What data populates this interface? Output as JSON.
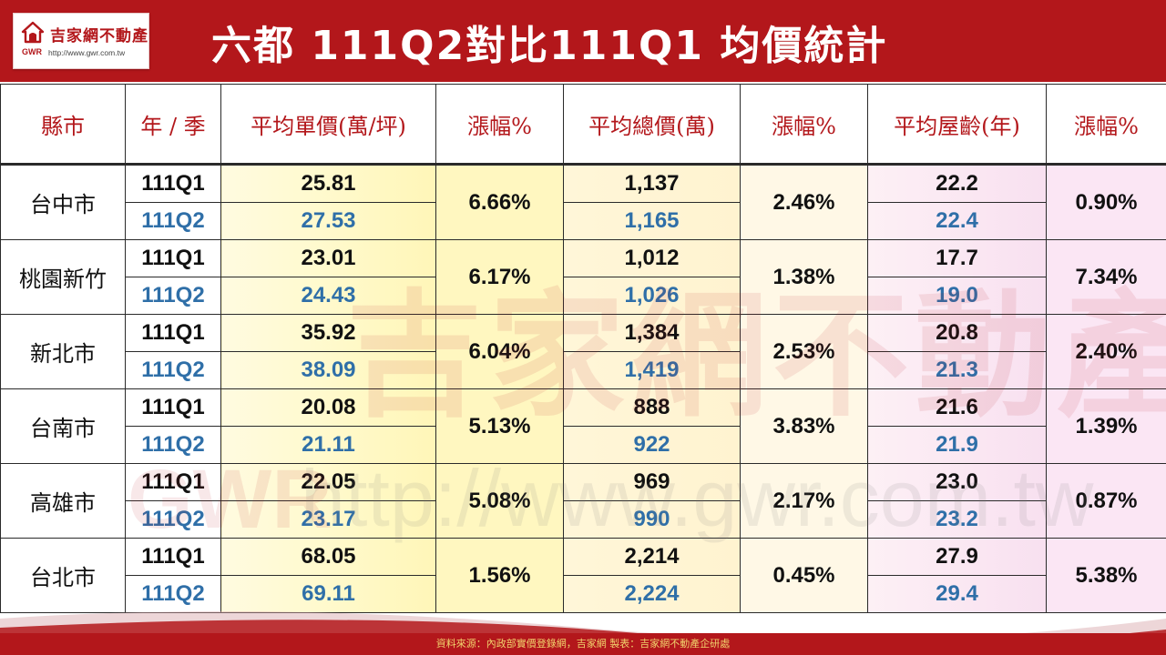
{
  "logo": {
    "name": "吉家網不動產",
    "abbr": "GWR",
    "url": "http://www.gwr.com.tw"
  },
  "title": "六都 111Q2對比111Q1 均價統計",
  "columns": [
    "縣市",
    "年 / 季",
    "平均單價(萬/坪)",
    "漲幅%",
    "平均總價(萬)",
    "漲幅%",
    "平均屋齡(年)",
    "漲幅%"
  ],
  "rows": [
    {
      "city": "台中市",
      "q1": "111Q1",
      "q2": "111Q2",
      "unit_q1": "25.81",
      "unit_q2": "27.53",
      "unit_pct": "6.66%",
      "total_q1": "1,137",
      "total_q2": "1,165",
      "total_pct": "2.46%",
      "age_q1": "22.2",
      "age_q2": "22.4",
      "age_pct": "0.90%"
    },
    {
      "city": "桃園新竹",
      "q1": "111Q1",
      "q2": "111Q2",
      "unit_q1": "23.01",
      "unit_q2": "24.43",
      "unit_pct": "6.17%",
      "total_q1": "1,012",
      "total_q2": "1,026",
      "total_pct": "1.38%",
      "age_q1": "17.7",
      "age_q2": "19.0",
      "age_pct": "7.34%"
    },
    {
      "city": "新北市",
      "q1": "111Q1",
      "q2": "111Q2",
      "unit_q1": "35.92",
      "unit_q2": "38.09",
      "unit_pct": "6.04%",
      "total_q1": "1,384",
      "total_q2": "1,419",
      "total_pct": "2.53%",
      "age_q1": "20.8",
      "age_q2": "21.3",
      "age_pct": "2.40%"
    },
    {
      "city": "台南市",
      "q1": "111Q1",
      "q2": "111Q2",
      "unit_q1": "20.08",
      "unit_q2": "21.11",
      "unit_pct": "5.13%",
      "total_q1": "888",
      "total_q2": "922",
      "total_pct": "3.83%",
      "age_q1": "21.6",
      "age_q2": "21.9",
      "age_pct": "1.39%"
    },
    {
      "city": "高雄市",
      "q1": "111Q1",
      "q2": "111Q2",
      "unit_q1": "22.05",
      "unit_q2": "23.17",
      "unit_pct": "5.08%",
      "total_q1": "969",
      "total_q2": "990",
      "total_pct": "2.17%",
      "age_q1": "23.0",
      "age_q2": "23.2",
      "age_pct": "0.87%"
    },
    {
      "city": "台北市",
      "q1": "111Q1",
      "q2": "111Q2",
      "unit_q1": "68.05",
      "unit_q2": "69.11",
      "unit_pct": "1.56%",
      "total_q1": "2,214",
      "total_q2": "2,224",
      "total_pct": "0.45%",
      "age_q1": "27.9",
      "age_q2": "29.4",
      "age_pct": "5.38%"
    }
  ],
  "watermark": {
    "brand": "吉家網不動產",
    "abbr": "GWR",
    "url": "http://www.gwr.com.tw"
  },
  "footer": "資料來源：內政部實價登錄網，吉家網  製表：吉家網不動產企研處",
  "colors": {
    "brand_red": "#b3171b",
    "q2_blue": "#2f6fa8",
    "footer_text": "#f1d36d"
  }
}
